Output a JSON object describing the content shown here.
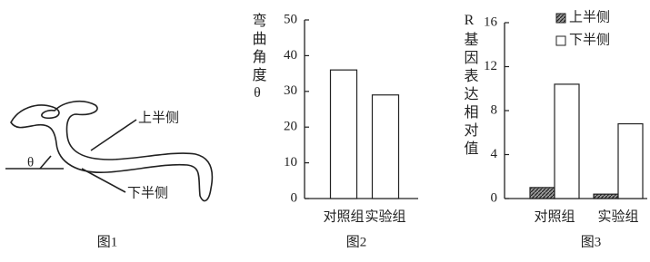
{
  "figure1": {
    "label_upper": "上半侧",
    "label_lower": "下半侧",
    "angle": "θ",
    "caption": "图1"
  },
  "chart_data": [
    {
      "type": "bar",
      "ylabel": "弯曲角度θ",
      "caption": "图2",
      "categories": [
        "对照组",
        "实验组"
      ],
      "values": [
        36,
        29
      ],
      "color": "#ffffff",
      "ylim": [
        0,
        50
      ],
      "yticks": [
        0,
        10,
        20,
        30,
        40,
        50
      ]
    },
    {
      "type": "grouped-bar",
      "ylabel": "R基因表达相对值",
      "caption": "图3",
      "categories": [
        "对照组",
        "实验组"
      ],
      "series": [
        {
          "name": "上半侧",
          "color": "#555555",
          "hatch": true,
          "values": [
            1,
            0.4
          ]
        },
        {
          "name": "下半侧",
          "color": "#ffffff",
          "hatch": false,
          "values": [
            10.4,
            6.8
          ]
        }
      ],
      "ylim": [
        0,
        16
      ],
      "yticks": [
        0,
        4,
        8,
        12,
        16
      ],
      "legend": "top-right"
    }
  ]
}
